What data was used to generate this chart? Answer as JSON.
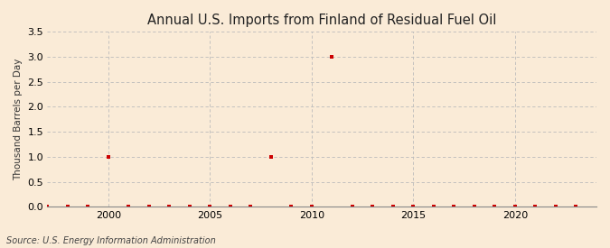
{
  "title": "Annual U.S. Imports from Finland of Residual Fuel Oil",
  "ylabel": "Thousand Barrels per Day",
  "source": "Source: U.S. Energy Information Administration",
  "background_color": "#faebd7",
  "marker_color": "#cc0000",
  "grid_color": "#bbbbbb",
  "xlim": [
    1997,
    2024
  ],
  "ylim": [
    0,
    3.5
  ],
  "xticks": [
    2000,
    2005,
    2010,
    2015,
    2020
  ],
  "yticks": [
    0.0,
    0.5,
    1.0,
    1.5,
    2.0,
    2.5,
    3.0,
    3.5
  ],
  "data": {
    "1997": 0,
    "1998": 0,
    "1999": 0,
    "2000": 1.0,
    "2001": 0,
    "2002": 0,
    "2003": 0,
    "2004": 0,
    "2005": 0,
    "2006": 0,
    "2007": 0,
    "2008": 1.0,
    "2009": 0,
    "2010": 0,
    "2011": 3.0,
    "2012": 0,
    "2013": 0,
    "2014": 0,
    "2015": 0,
    "2016": 0,
    "2017": 0,
    "2018": 0,
    "2019": 0,
    "2020": 0,
    "2021": 0,
    "2022": 0,
    "2023": 0
  }
}
